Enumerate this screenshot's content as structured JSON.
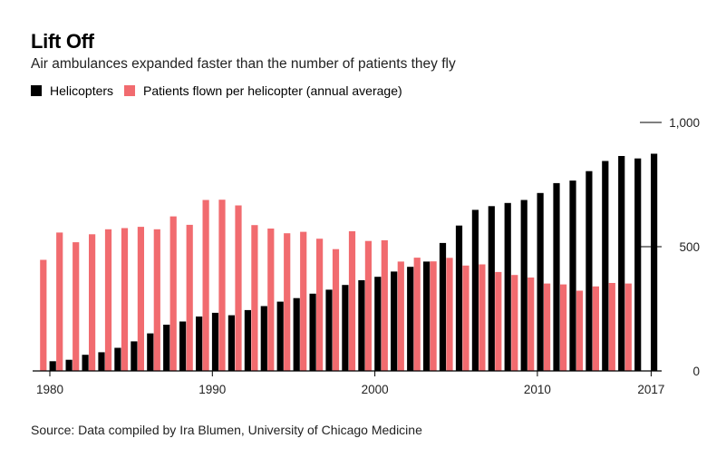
{
  "title": "Lift Off",
  "subtitle": "Air ambulances expanded faster than the number of patients they fly",
  "legend": [
    {
      "label": "Helicopters",
      "color": "#000000"
    },
    {
      "label": "Patients flown per helicopter (annual average)",
      "color": "#f16b6f"
    }
  ],
  "source": "Source: Data compiled by Ira Blumen, University of Chicago Medicine",
  "chart_data": {
    "type": "bar",
    "x_tick_labels": [
      "1980",
      "1990",
      "2000",
      "2010",
      "2017"
    ],
    "x_ticks": [
      1980,
      1990,
      2000,
      2010,
      2017
    ],
    "y_tick_labels": [
      "0",
      "500",
      "1,000"
    ],
    "y_ticks": [
      0,
      500,
      1000
    ],
    "ylim": [
      0,
      1000
    ],
    "y_axis_side": "right",
    "categories": [
      1980,
      1981,
      1982,
      1983,
      1984,
      1985,
      1986,
      1987,
      1988,
      1989,
      1990,
      1991,
      1992,
      1993,
      1994,
      1995,
      1996,
      1997,
      1998,
      1999,
      2000,
      2001,
      2002,
      2003,
      2004,
      2005,
      2006,
      2007,
      2008,
      2009,
      2010,
      2011,
      2012,
      2013,
      2014,
      2015,
      2016,
      2017
    ],
    "series": [
      {
        "name": "Helicopters",
        "color": "#000000",
        "values": [
          39,
          45,
          65,
          75,
          93,
          119,
          151,
          186,
          199,
          219,
          234,
          224,
          245,
          261,
          279,
          293,
          311,
          327,
          346,
          365,
          379,
          400,
          419,
          440,
          515,
          585,
          648,
          663,
          676,
          688,
          716,
          756,
          766,
          804,
          845,
          865,
          855,
          874
        ]
      },
      {
        "name": "Patients flown per helicopter (annual average)",
        "color": "#f16b6f",
        "values": [
          447,
          557,
          518,
          550,
          570,
          575,
          580,
          570,
          622,
          588,
          688,
          689,
          666,
          587,
          573,
          554,
          560,
          532,
          490,
          562,
          523,
          526,
          440,
          456,
          441,
          455,
          424,
          429,
          398,
          386,
          376,
          352,
          348,
          323,
          340,
          354,
          352,
          null
        ]
      }
    ],
    "grid": false,
    "legend_position": "top-left"
  }
}
